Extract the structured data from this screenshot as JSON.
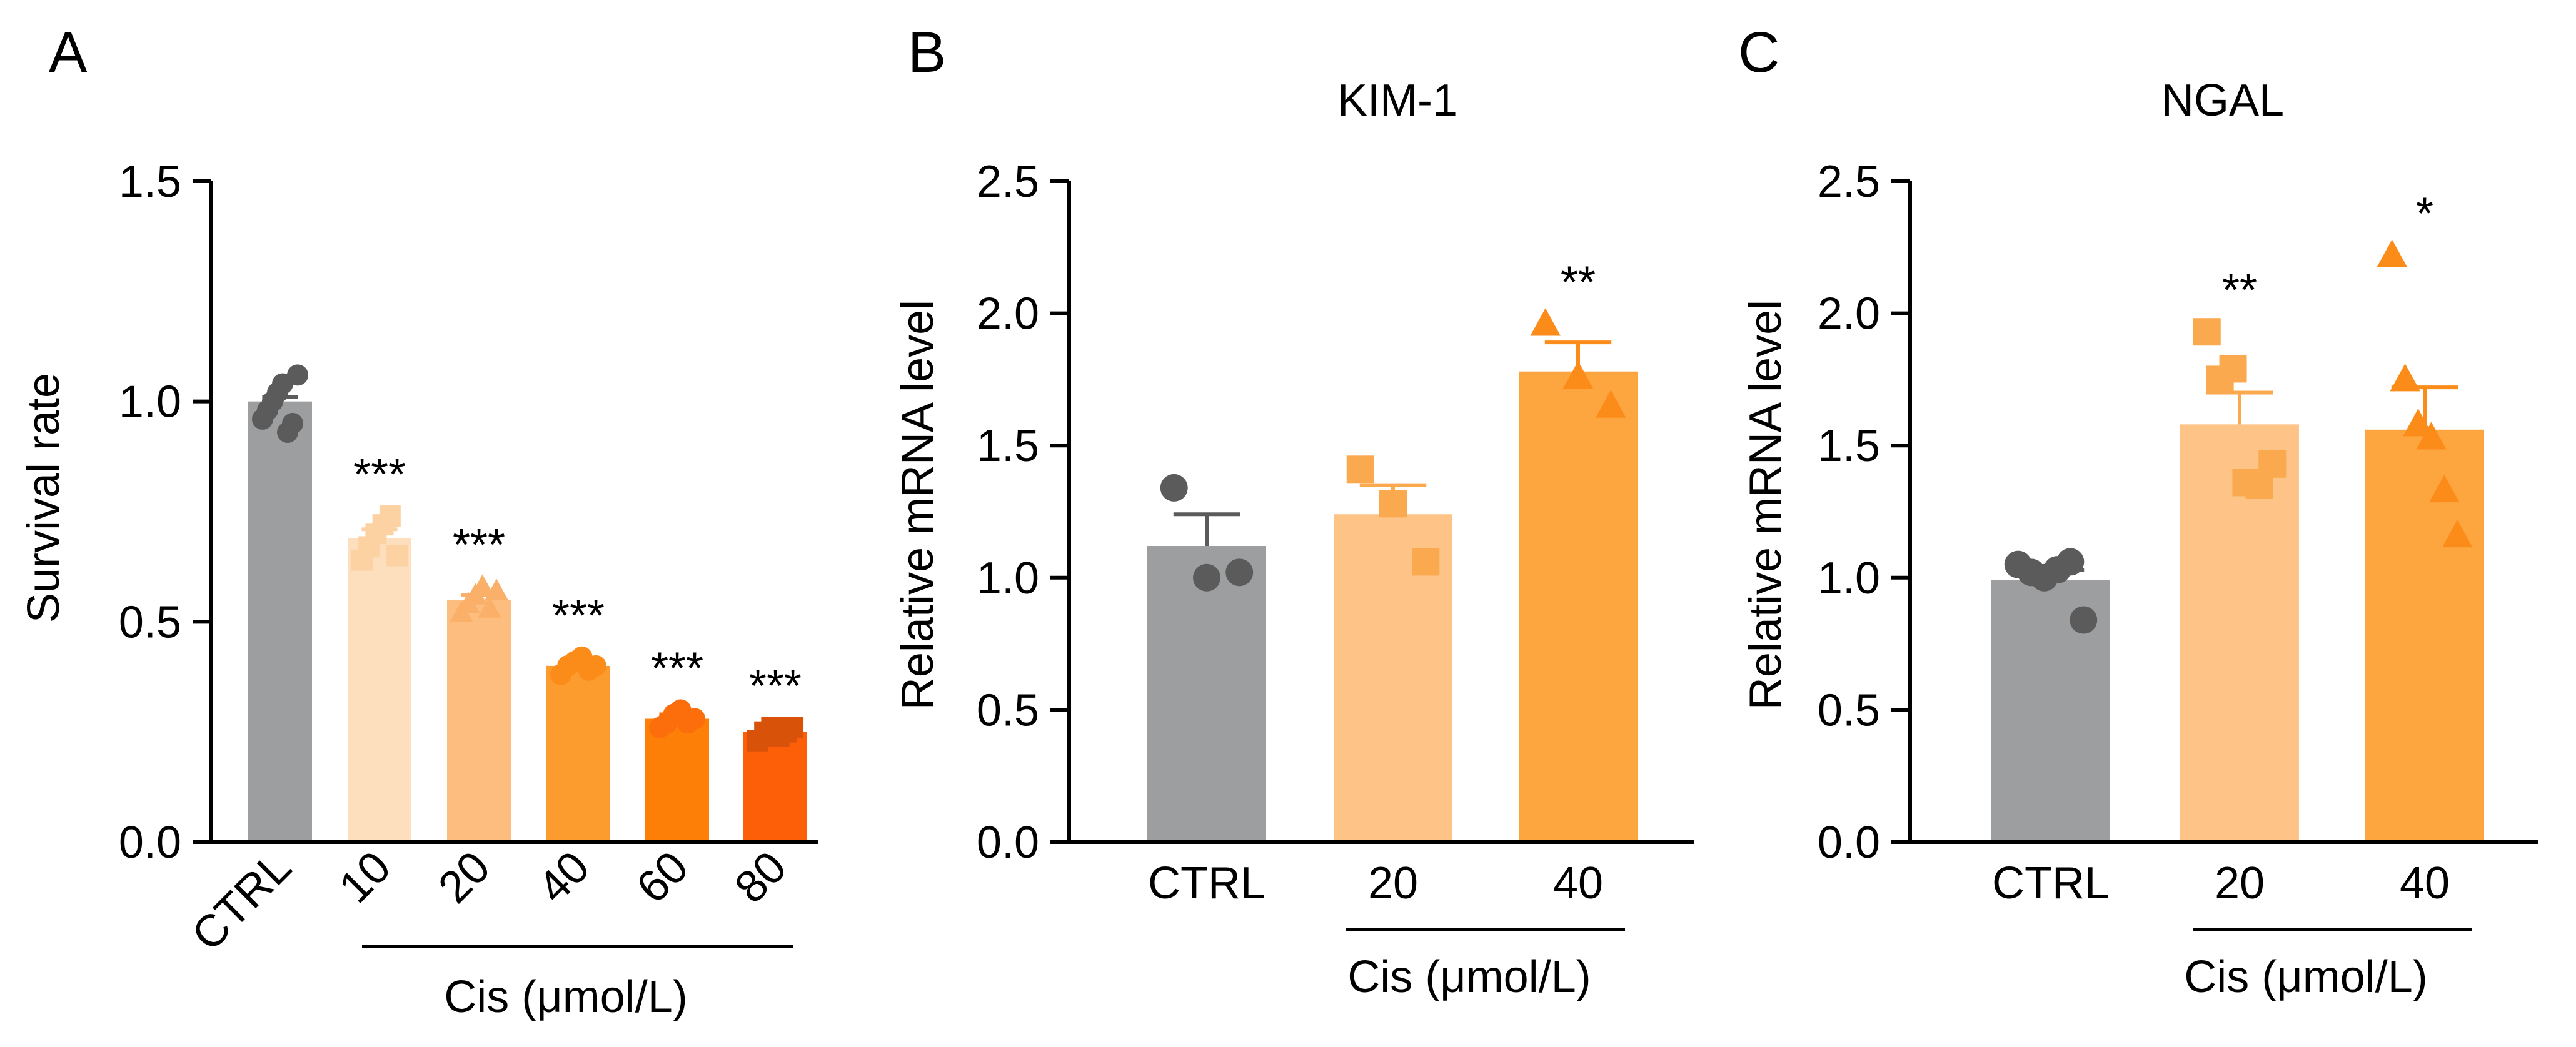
{
  "chart_data": [
    {
      "panel": "A",
      "type": "bar",
      "title": "",
      "ylabel": "Survival rate",
      "xlabel": "Cis (μmol/L)",
      "ylim": [
        0,
        1.5
      ],
      "yticks": [
        "0.0",
        "0.5",
        "1.0",
        "1.5"
      ],
      "tick_values": [
        0,
        0.5,
        1.0,
        1.5
      ],
      "categories": [
        "CTRL",
        "10",
        "20",
        "40",
        "60",
        "80"
      ],
      "bracket_categories": [
        "10",
        "80"
      ],
      "values": [
        1.0,
        0.69,
        0.55,
        0.4,
        0.28,
        0.25
      ],
      "sem": [
        0.01,
        0.02,
        0.01,
        0.01,
        0.01,
        0.01
      ],
      "colors": [
        "#9d9ea0",
        "#fddfbe",
        "#fdbd7e",
        "#fd9c2e",
        "#fd7f08",
        "#fd5e08"
      ],
      "marker_colors": [
        "#5b5b5b",
        "#fcd2a3",
        "#fbb069",
        "#fc8c19",
        "#fc6e0b",
        "#d85309"
      ],
      "markers": [
        "circle",
        "square",
        "triangle",
        "circle",
        "circle",
        "square"
      ],
      "significance": [
        "",
        "***",
        "***",
        "***",
        "***",
        "***"
      ],
      "points": [
        [
          0.96,
          0.98,
          1.0,
          1.02,
          1.04,
          0.93,
          0.95,
          1.06
        ],
        [
          0.64,
          0.67,
          0.7,
          0.72,
          0.74,
          0.65
        ],
        [
          0.52,
          0.54,
          0.56,
          0.58,
          0.53,
          0.57
        ],
        [
          0.38,
          0.4,
          0.41,
          0.42,
          0.39,
          0.4
        ],
        [
          0.26,
          0.27,
          0.29,
          0.3,
          0.27,
          0.28
        ],
        [
          0.23,
          0.25,
          0.26,
          0.24,
          0.25,
          0.26
        ]
      ]
    },
    {
      "panel": "B",
      "type": "bar",
      "title": "KIM-1",
      "ylabel": "Relative mRNA level",
      "xlabel": "Cis (μmol/L)",
      "ylim": [
        0,
        2.5
      ],
      "yticks": [
        "0.0",
        "0.5",
        "1.0",
        "1.5",
        "2.0",
        "2.5"
      ],
      "tick_values": [
        0,
        0.5,
        1.0,
        1.5,
        2.0,
        2.5
      ],
      "categories": [
        "CTRL",
        "20",
        "40"
      ],
      "bracket_categories": [
        "20",
        "40"
      ],
      "values": [
        1.12,
        1.24,
        1.78
      ],
      "sem": [
        0.12,
        0.11,
        0.11
      ],
      "colors": [
        "#9d9ea0",
        "#fdc387",
        "#fda53f"
      ],
      "marker_colors": [
        "#5b5b5b",
        "#fba94f",
        "#fc8c19"
      ],
      "markers": [
        "circle",
        "square",
        "triangle"
      ],
      "significance": [
        "",
        "",
        "**"
      ],
      "points": [
        [
          1.34,
          1.0,
          1.02
        ],
        [
          1.41,
          1.28,
          1.06
        ],
        [
          1.96,
          1.76,
          1.65
        ]
      ]
    },
    {
      "panel": "C",
      "type": "bar",
      "title": "NGAL",
      "ylabel": "Relative mRNA level",
      "xlabel": "Cis (μmol/L)",
      "ylim": [
        0,
        2.5
      ],
      "yticks": [
        "0.0",
        "0.5",
        "1.0",
        "1.5",
        "2.0",
        "2.5"
      ],
      "tick_values": [
        0,
        0.5,
        1.0,
        1.5,
        2.0,
        2.5
      ],
      "categories": [
        "CTRL",
        "20",
        "40"
      ],
      "bracket_categories": [
        "20",
        "40"
      ],
      "values": [
        0.99,
        1.58,
        1.56
      ],
      "sem": [
        0.04,
        0.12,
        0.16
      ],
      "colors": [
        "#9d9ea0",
        "#fdc387",
        "#fda53f"
      ],
      "marker_colors": [
        "#5b5b5b",
        "#fba94f",
        "#fc8c19"
      ],
      "markers": [
        "circle",
        "square",
        "triangle"
      ],
      "significance": [
        "",
        "**",
        "*"
      ],
      "points": [
        [
          1.05,
          1.02,
          1.0,
          1.03,
          1.06,
          0.84
        ],
        [
          1.93,
          1.75,
          1.79,
          1.36,
          1.35,
          1.43
        ],
        [
          2.22,
          1.75,
          1.58,
          1.53,
          1.33,
          1.16
        ]
      ]
    }
  ]
}
